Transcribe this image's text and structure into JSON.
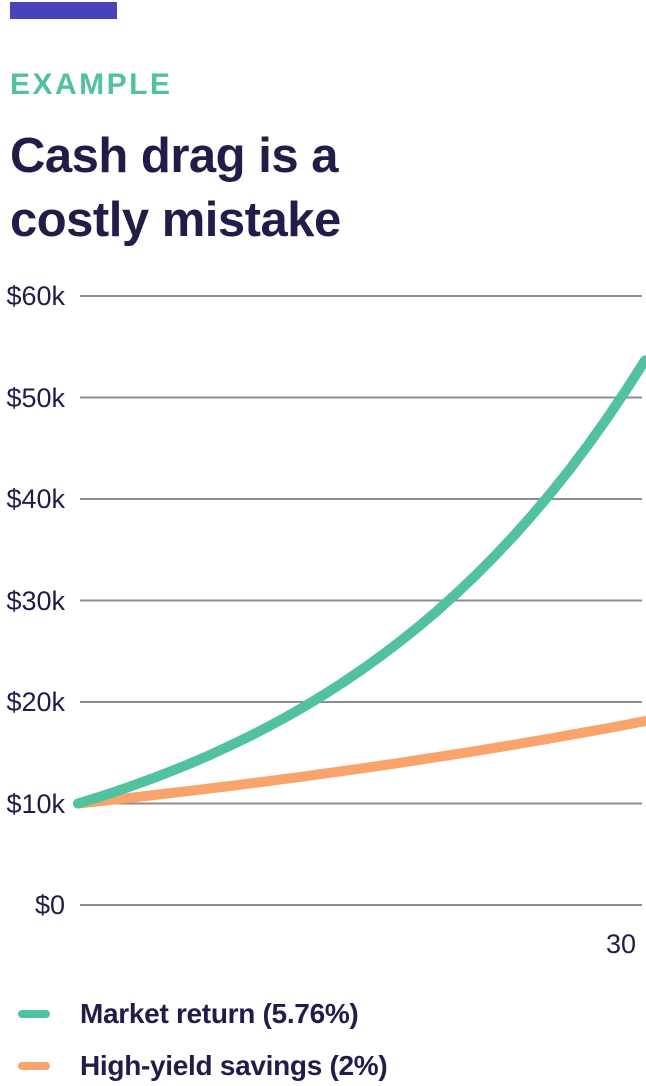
{
  "header": {
    "eyebrow": "EXAMPLE",
    "title_lines": [
      "Cash drag is a",
      "costly mistake"
    ],
    "title": "Cash drag is a costly mistake"
  },
  "colors": {
    "brand_purple": "#4843BA",
    "accent_teal": "#52C1A2",
    "accent_orange": "#F9A46C",
    "text_navy": "#211D49",
    "gridline_gray": "#8E8E8E",
    "background": "#FFFFFF"
  },
  "chart_data": {
    "type": "line",
    "title": "Cash drag is a costly mistake",
    "xlabel": "",
    "ylabel": "",
    "xlim": [
      0,
      30
    ],
    "ylim": [
      0,
      60000
    ],
    "grid": "horizontal-only",
    "legend_position": "bottom-left",
    "x_years": [
      0,
      1,
      2,
      3,
      4,
      5,
      6,
      7,
      8,
      9,
      10,
      11,
      12,
      13,
      14,
      15,
      16,
      17,
      18,
      19,
      20,
      21,
      22,
      23,
      24,
      25,
      26,
      27,
      28,
      29,
      30
    ],
    "yticks": [
      {
        "value": 60000,
        "label": "$60k"
      },
      {
        "value": 50000,
        "label": "$50k"
      },
      {
        "value": 40000,
        "label": "$40k"
      },
      {
        "value": 30000,
        "label": "$30k"
      },
      {
        "value": 20000,
        "label": "$20k"
      },
      {
        "value": 10000,
        "label": "$10k"
      },
      {
        "value": 0,
        "label": "$0"
      }
    ],
    "xticks": [
      {
        "value": 30,
        "label": "30"
      }
    ],
    "series": [
      {
        "name": "Market return (5.76%)",
        "rate_pct": 5.76,
        "initial_amount": 10000,
        "color": "#52C1A2",
        "values": [
          10000,
          10576,
          11185,
          11829,
          12511,
          13231,
          13993,
          14799,
          15652,
          16553,
          17507,
          18515,
          19581,
          20709,
          21902,
          23164,
          24498,
          25909,
          27402,
          28980,
          30649,
          32415,
          34282,
          36257,
          38345,
          40554,
          42890,
          45360,
          47973,
          50736,
          53658
        ]
      },
      {
        "name": "High-yield savings (2%)",
        "rate_pct": 2.0,
        "initial_amount": 10000,
        "color": "#F9A46C",
        "values": [
          10000,
          10200,
          10404,
          10612,
          10824,
          11041,
          11262,
          11487,
          11717,
          11951,
          12190,
          12434,
          12682,
          12936,
          13195,
          13459,
          13728,
          14002,
          14282,
          14568,
          14859,
          15157,
          15460,
          15769,
          16084,
          16406,
          16734,
          17069,
          17410,
          17758,
          18114
        ]
      }
    ]
  }
}
